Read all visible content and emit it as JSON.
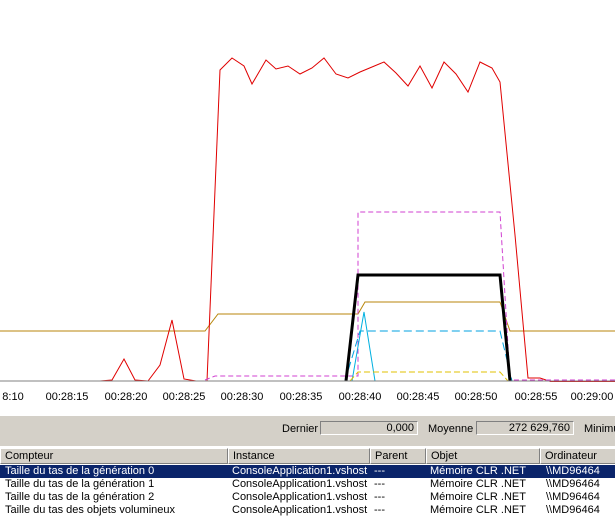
{
  "time_axis": {
    "ticks": [
      "8:10",
      "00:28:15",
      "00:28:20",
      "00:28:25",
      "00:28:30",
      "00:28:35",
      "00:28:40",
      "00:28:45",
      "00:28:50",
      "00:28:55",
      "00:29:00"
    ]
  },
  "stats": {
    "last_label": "Dernier",
    "last_value": "0,000",
    "average_label": "Moyenne",
    "average_value": "272 629,760",
    "minimum_label": "Minimu"
  },
  "table": {
    "headers": [
      "Compteur",
      "Instance",
      "Parent",
      "Objet",
      "Ordinateur"
    ],
    "rows": [
      [
        "Taille du tas de la génération 0",
        "ConsoleApplication1.vshost",
        "---",
        "Mémoire CLR .NET",
        "\\\\MD96464"
      ],
      [
        "Taille du tas de la génération 1",
        "ConsoleApplication1.vshost",
        "---",
        "Mémoire CLR .NET",
        "\\\\MD96464"
      ],
      [
        "Taille du tas de la génération 2",
        "ConsoleApplication1.vshost",
        "---",
        "Mémoire CLR .NET",
        "\\\\MD96464"
      ],
      [
        "Taille du tas des objets volumineux",
        "ConsoleApplication1.vshost",
        "---",
        "Mémoire CLR .NET",
        "\\\\MD96464"
      ],
      [
        "",
        "",
        "",
        "",
        ""
      ]
    ],
    "selected_row": 0
  },
  "colors": {
    "red_series": "#e00000",
    "olive_series": "#b8860b",
    "magenta_series": "#d040d0",
    "black_series": "#000000",
    "cyan_series": "#00a0e0",
    "selection": "#0a246a"
  }
}
